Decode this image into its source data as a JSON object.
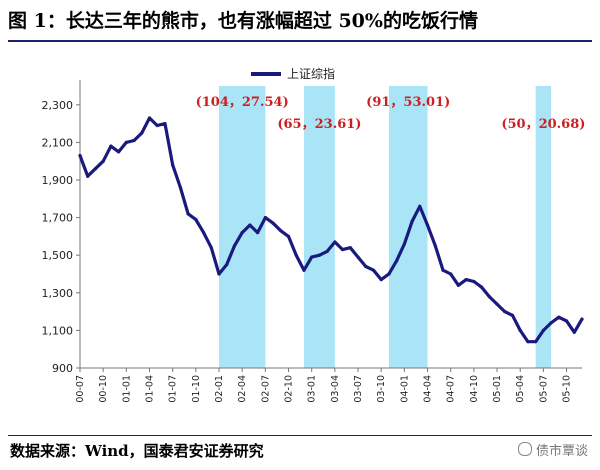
{
  "title": "图 1：长达三年的熊市，也有涨幅超过 50%的吃饭行情",
  "source": "数据来源：Wind，国泰君安证券研究",
  "watermark": "债市覃谈",
  "colors": {
    "line": "#1a1a7e",
    "band": "#a9e4f7",
    "annotation": "#cc1f1f",
    "title_rule": "#1f1f6f"
  },
  "chart_data": {
    "type": "line",
    "series": [
      {
        "name": "上证综指",
        "x": [
          "00-07",
          "00-08",
          "00-09",
          "00-10",
          "00-11",
          "00-12",
          "01-01",
          "01-02",
          "01-03",
          "01-04",
          "01-05",
          "01-06",
          "01-07",
          "01-08",
          "01-09",
          "01-10",
          "01-11",
          "01-12",
          "02-01",
          "02-02",
          "02-03",
          "02-04",
          "02-05",
          "02-06",
          "02-07",
          "02-08",
          "02-09",
          "02-10",
          "02-11",
          "02-12",
          "03-01",
          "03-02",
          "03-03",
          "03-04",
          "03-05",
          "03-06",
          "03-07",
          "03-08",
          "03-09",
          "03-10",
          "03-11",
          "03-12",
          "04-01",
          "04-02",
          "04-03",
          "04-04",
          "04-05",
          "04-06",
          "04-07",
          "04-08",
          "04-09",
          "04-10",
          "04-11",
          "04-12",
          "05-01",
          "05-02",
          "05-03",
          "05-04",
          "05-05",
          "05-06",
          "05-07",
          "05-08",
          "05-09",
          "05-10",
          "05-11",
          "05-12"
        ],
        "values": [
          2030,
          1920,
          1960,
          2000,
          2080,
          2050,
          2100,
          2110,
          2150,
          2230,
          2190,
          2200,
          1980,
          1860,
          1720,
          1690,
          1620,
          1540,
          1400,
          1450,
          1550,
          1620,
          1660,
          1620,
          1700,
          1670,
          1630,
          1600,
          1500,
          1420,
          1490,
          1500,
          1520,
          1570,
          1530,
          1540,
          1490,
          1440,
          1420,
          1370,
          1400,
          1470,
          1560,
          1680,
          1760,
          1660,
          1550,
          1420,
          1400,
          1340,
          1370,
          1360,
          1330,
          1280,
          1240,
          1200,
          1180,
          1100,
          1040,
          1040,
          1100,
          1140,
          1170,
          1150,
          1090,
          1160
        ]
      }
    ],
    "x_ticks": [
      "00-07",
      "00-10",
      "01-01",
      "01-04",
      "01-07",
      "01-10",
      "02-01",
      "02-04",
      "02-07",
      "02-10",
      "03-01",
      "03-04",
      "03-07",
      "03-10",
      "04-01",
      "04-04",
      "04-07",
      "04-10",
      "05-01",
      "05-04",
      "05-07",
      "05-10"
    ],
    "y_ticks": [
      900,
      1100,
      1300,
      1500,
      1700,
      1900,
      2100,
      2300
    ],
    "ylim": [
      900,
      2400
    ],
    "shaded_periods": [
      {
        "start": "02-01",
        "end": "02-07",
        "label": "(104，27.54)"
      },
      {
        "start": "02-12",
        "end": "03-04",
        "label": "(65，23.61)"
      },
      {
        "start": "03-11",
        "end": "04-04",
        "label": "(91，53.01)"
      },
      {
        "start": "05-06",
        "end": "05-08",
        "label": "(50，20.68)"
      }
    ],
    "legend_position": "top-center",
    "grid": false
  }
}
